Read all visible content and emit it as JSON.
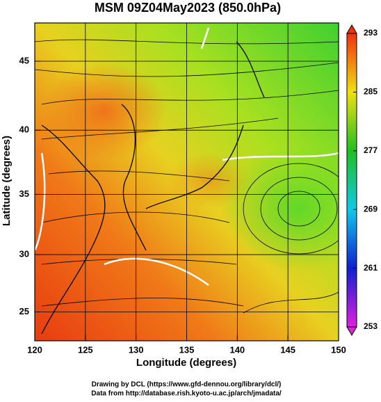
{
  "chart_data": {
    "type": "map",
    "title": "MSM 09Z04May2023 (850.0hPa)",
    "xlabel": "Longitude (degrees)",
    "ylabel": "Latitude  (degrees)",
    "xlim": [
      120,
      150
    ],
    "xticks": [
      120,
      125,
      130,
      135,
      140,
      145,
      150
    ],
    "ylim": [
      22.4,
      47.6
    ],
    "yticks": [
      25,
      30,
      35,
      40,
      45
    ],
    "y_scale": "mercator",
    "grid": true,
    "colorbar": {
      "lim": [
        253,
        293
      ],
      "ticks": [
        253,
        261,
        269,
        277,
        285,
        293
      ],
      "colors": [
        "#e020e0",
        "#1020d0",
        "#10c8e8",
        "#20c020",
        "#f0e010",
        "#f03010"
      ]
    },
    "credits": [
      "Drawing by DCL (https://www.gfd-dennou.org/library/dcl/)",
      "Data from http://database.rish.kyoto-u.ac.jp/arch/jmadata/"
    ]
  }
}
